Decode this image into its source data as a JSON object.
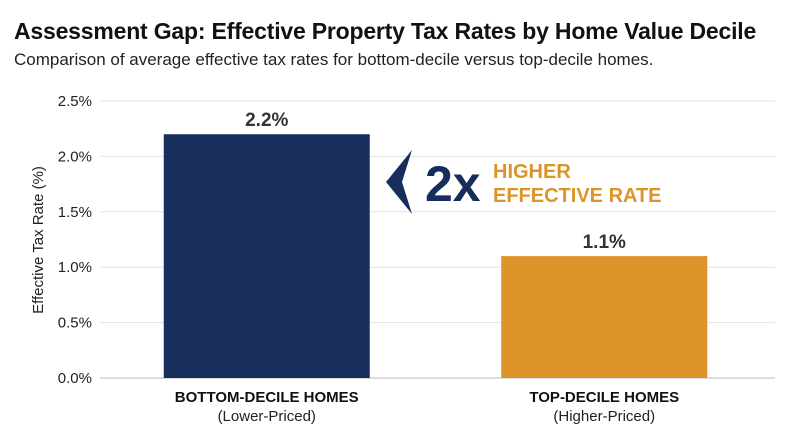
{
  "header": {
    "title": "Assessment Gap: Effective Property Tax Rates by Home Value Decile",
    "subtitle": "Comparison of average effective tax rates for bottom-decile versus top-decile homes."
  },
  "chart_data": {
    "type": "bar",
    "title": "Assessment Gap: Effective Property Tax Rates by Home Value Decile",
    "subtitle": "Comparison of average effective tax rates for bottom-decile versus top-decile homes.",
    "xlabel": "",
    "ylabel": "Effective Tax Rate (%)",
    "ylim": [
      0,
      2.5
    ],
    "yticks": [
      0,
      0.5,
      1.0,
      1.5,
      2.0,
      2.5
    ],
    "ytick_labels": [
      "0.0%",
      "0.5%",
      "1.0%",
      "1.5%",
      "2.0%",
      "2.5%"
    ],
    "grid": true,
    "categories": [
      "BOTTOM-DECILE HOMES",
      "TOP-DECILE HOMES"
    ],
    "category_sublabels": [
      "(Lower-Priced)",
      "(Higher-Priced)"
    ],
    "values": [
      2.2,
      1.1
    ],
    "value_labels": [
      "2.2%",
      "1.1%"
    ],
    "colors": [
      "#172d5c",
      "#dc9428"
    ],
    "annotation": {
      "number": "2x",
      "lines": [
        "HIGHER",
        "EFFECTIVE RATE"
      ],
      "number_color": "#172d5c",
      "text_color": "#dc9428"
    }
  }
}
